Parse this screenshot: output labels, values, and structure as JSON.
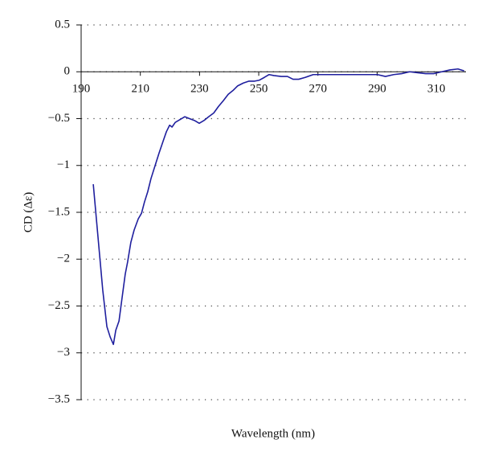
{
  "chart_data": {
    "type": "line",
    "x_label": "Wavelength (nm)",
    "y_label": "CD (Δε)",
    "xlim": [
      190,
      320
    ],
    "xticks": [
      190,
      210,
      230,
      250,
      270,
      290,
      310
    ],
    "ylim": [
      -3.5,
      0.5
    ],
    "yticks": [
      0.5,
      0,
      {
        "value": -0.5,
        "label": "−0.5"
      },
      {
        "value": -1,
        "label": "−1"
      },
      {
        "value": -1.5,
        "label": "−1.5"
      },
      {
        "value": -2,
        "label": "−2"
      },
      {
        "value": -2.5,
        "label": "−2.5"
      },
      {
        "value": -3,
        "label": "−3"
      },
      {
        "value": -3.5,
        "label": "−3.5"
      }
    ],
    "grid": true,
    "series": [
      {
        "color": "#1f1f9e",
        "x": [
          194.1,
          197.3,
          198.7,
          199.8,
          200.9,
          201.7,
          202.8,
          203.8,
          204.9,
          205.7,
          206.8,
          207.9,
          209.3,
          210.4,
          211.4,
          212.5,
          213.6,
          215.0,
          216.3,
          217.7,
          218.8,
          219.9,
          220.7,
          221.8,
          223.4,
          225.0,
          226.6,
          228.3,
          229.9,
          231.5,
          233.1,
          234.8,
          236.4,
          238.0,
          239.7,
          241.3,
          242.9,
          244.8,
          246.7,
          248.6,
          250.2,
          251.9,
          253.5,
          255.1,
          257.6,
          259.7,
          261.6,
          263.5,
          265.7,
          268.4,
          271.1,
          276.6,
          282.0,
          287.4,
          290.1,
          292.8,
          295.6,
          298.3,
          301.0,
          303.7,
          306.4,
          309.1,
          311.8,
          314.6,
          317.3,
          319.4
        ],
        "values": [
          -1.2,
          -2.33,
          -2.72,
          -2.83,
          -2.91,
          -2.76,
          -2.66,
          -2.42,
          -2.16,
          -2.03,
          -1.82,
          -1.69,
          -1.57,
          -1.51,
          -1.39,
          -1.28,
          -1.14,
          -1.0,
          -0.87,
          -0.74,
          -0.64,
          -0.57,
          -0.59,
          -0.54,
          -0.51,
          -0.48,
          -0.5,
          -0.52,
          -0.55,
          -0.52,
          -0.48,
          -0.44,
          -0.37,
          -0.31,
          -0.24,
          -0.2,
          -0.15,
          -0.12,
          -0.1,
          -0.1,
          -0.09,
          -0.06,
          -0.03,
          -0.04,
          -0.05,
          -0.05,
          -0.08,
          -0.08,
          -0.06,
          -0.03,
          -0.03,
          -0.03,
          -0.03,
          -0.03,
          -0.03,
          -0.05,
          -0.03,
          -0.02,
          0,
          -0.01,
          -0.02,
          -0.02,
          0,
          0.02,
          0.03,
          0.01
        ]
      }
    ]
  }
}
